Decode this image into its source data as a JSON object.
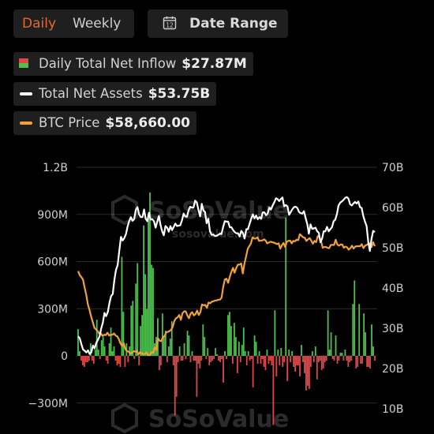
{
  "tabs": [
    {
      "label": "Daily",
      "active": true
    },
    {
      "label": "Weekly",
      "active": false
    }
  ],
  "date_range": {
    "label": "Date Range",
    "icon": "calendar-icon",
    "icon_text": "12"
  },
  "legend": [
    {
      "label": "Daily Total Net Inflow",
      "value": "$27.87M",
      "icon": "bar-swatch-icon",
      "colors": [
        "#e04848",
        "#4fc04f"
      ]
    },
    {
      "label": "Total Net Assets",
      "value": "$53.75B",
      "icon": "line-swatch-icon",
      "colors": [
        "#ffffff"
      ]
    },
    {
      "label": "BTC Price",
      "value": "$58,660.00",
      "icon": "line-swatch-icon",
      "colors": [
        "#f0a23a"
      ]
    }
  ],
  "watermark": {
    "brand": "SoSoValue",
    "site": "sosovalue.com"
  },
  "colors": {
    "positive": "#4fc04f",
    "negative": "#e04848",
    "assets": "#ffffff",
    "price": "#f0a23a",
    "active_tab": "#e8642c"
  },
  "chart_data": {
    "type": "bar",
    "y_left": {
      "ticks": [
        "1.2B",
        "900M",
        "600M",
        "300M",
        "0",
        "−300M"
      ],
      "min": -400000000,
      "max": 1200000000
    },
    "y_right": {
      "ticks": [
        "70B",
        "60B",
        "50B",
        "40B",
        "30B",
        "20B",
        "10B"
      ],
      "min": 8000000000,
      "max": 70000000000
    },
    "series": [
      {
        "name": "Daily Total Net Inflow",
        "kind": "bar",
        "unit": "USD",
        "values": [
          170,
          30,
          -30,
          -60,
          -70,
          -40,
          -40,
          -30,
          80,
          -30,
          -50,
          40,
          230,
          40,
          -20,
          100,
          120,
          60,
          -30,
          -50,
          80,
          180,
          30,
          60,
          -30,
          -60,
          -50,
          -70,
          630,
          280,
          -70,
          80,
          -40,
          60,
          320,
          350,
          -20,
          460,
          590,
          -60,
          190,
          260,
          830,
          520,
          300,
          890,
          1040,
          580,
          560,
          80,
          120,
          240,
          -90,
          -60,
          270,
          130,
          160,
          -40,
          60,
          110,
          220,
          -60,
          -380,
          -260,
          -40,
          60,
          -30,
          -30,
          80,
          -20,
          160,
          130,
          -40,
          30,
          -30,
          -30,
          -260,
          -50,
          -80,
          -30,
          200,
          120,
          -20,
          50,
          -60,
          -40,
          -30,
          -20,
          50,
          10,
          -30,
          -40,
          -20,
          -170,
          30,
          -20,
          260,
          280,
          190,
          -50,
          210,
          120,
          -110,
          90,
          -40,
          70,
          180,
          30,
          -60,
          30,
          -30,
          -20,
          -200,
          130,
          90,
          -50,
          30,
          -50,
          -20,
          -70,
          -90,
          40,
          -50,
          -30,
          -60,
          -440,
          290,
          -130,
          40,
          -60,
          50,
          -70,
          -40,
          880,
          -160,
          40,
          -40,
          30,
          -70,
          -100,
          -60,
          -60,
          -130,
          70,
          -40,
          -110,
          -220,
          -190,
          -210,
          -70,
          30,
          -40,
          60,
          -150,
          -40,
          -30,
          -90,
          -80,
          -40,
          -30,
          290,
          40,
          150,
          -20,
          -30,
          130,
          -50,
          -30,
          20,
          20,
          -30,
          40,
          -30,
          -70,
          -40,
          -30,
          330,
          480,
          -80,
          -70,
          330,
          -50,
          -50,
          270,
          150,
          -70,
          -70,
          -80,
          200,
          60,
          -30
        ]
      },
      {
        "name": "Total Net Assets",
        "kind": "line",
        "unit": "USD",
        "values": [
          28.0,
          27.5,
          26.0,
          24.7,
          24.4,
          24.0,
          24.5,
          23.6,
          24.0,
          25.7,
          25.0,
          26.4,
          27.1,
          28.0,
          29.9,
          31.4,
          33.8,
          33.0,
          34.0,
          36.3,
          38.0,
          38.5,
          42.1,
          44.5,
          45.7,
          49.3,
          52.7,
          51.8,
          52.4,
          53.4,
          55.3,
          56.7,
          57.6,
          56.7,
          57.1,
          59.4,
          60.1,
          58.3,
          57.6,
          57.6,
          59.5,
          57.2,
          56.6,
          58.7,
          57.0,
          57.1,
          56.6,
          55.0,
          56.5,
          57.9,
          55.7,
          54.1,
          53.1,
          55.4,
          55.0,
          54.0,
          55.4,
          54.4,
          55.2,
          56.0,
          55.4,
          55.5,
          55.6,
          56.8,
          58.5,
          57.8,
          57.7,
          59.3,
          60.2,
          60.0,
          60.0,
          61.7,
          61.3,
          59.4,
          57.8,
          60.9,
          59.3,
          58.9,
          56.1,
          57.2,
          54.1,
          53.2,
          53.3,
          52.9,
          53.0,
          53.2,
          53.5,
          53.4,
          55.2,
          56.6,
          56.5,
          56.5,
          55.1,
          55.1,
          54.4,
          53.9,
          53.6,
          53.6,
          52.8,
          54.2,
          53.6,
          52.3,
          54.6,
          54.6,
          55.9,
          57.2,
          58.3,
          57.3,
          58.0,
          57.1,
          57.6,
          57.2,
          58.8,
          58.8,
          58.1,
          58.5,
          60.0,
          59.5,
          60.5,
          61.3,
          62.3,
          62.1,
          61.6,
          62.1,
          62.5,
          60.3,
          60.6,
          60.3,
          58.2,
          58.9,
          59.6,
          60.1,
          60.2,
          59.9,
          58.9,
          58.6,
          58.5,
          59.1,
          57.4,
          55.9,
          53.5,
          55.8,
          54.7,
          54.8,
          55.0,
          54.1,
          53.7,
          51.4,
          52.3,
          54.1,
          54.1,
          55.2,
          54.1,
          54.6,
          55.1,
          56.6,
          57.0,
          58.4,
          60.5,
          61.2,
          61.5,
          61.9,
          62.4,
          62.6,
          62.2,
          60.8,
          60.5,
          61.0,
          61.4,
          61.0,
          61.5,
          60.1,
          59.9,
          57.9,
          56.5,
          55.4,
          51.6,
          49.2,
          52.2,
          54.2,
          53.9
        ]
      },
      {
        "name": "BTC Price",
        "kind": "line",
        "unit": "USD",
        "values": [
          44.2,
          43.2,
          42.7,
          42.1,
          40.1,
          38.3,
          35.9,
          34.5,
          32.9,
          31.5,
          30.1,
          29.7,
          29.3,
          28.6,
          28.7,
          28.1,
          28.4,
          28.3,
          28.9,
          28.2,
          28.4,
          28.4,
          28.7,
          28.2,
          28.0,
          27.3,
          26.2,
          25.6,
          26.3,
          24.8,
          24.3,
          24.2,
          23.7,
          23.9,
          24.3,
          24.2,
          24.4,
          23.5,
          24.1,
          23.7,
          23.6,
          23.6,
          24.0,
          23.3,
          23.4,
          24.1,
          23.9,
          25.2,
          24.6,
          27.5,
          26.9,
          26.8,
          27.8,
          28.0,
          29.0,
          29.1,
          29.3,
          29.6,
          30.3,
          31.8,
          32.5,
          32.7,
          33.3,
          32.1,
          33.7,
          34.2,
          34.2,
          33.2,
          32.5,
          33.6,
          34.0,
          33.2,
          33.5,
          34.4,
          33.3,
          34.0,
          35.9,
          35.7,
          35.8,
          35.1,
          36.4,
          36.2,
          36.6,
          36.7,
          36.9,
          36.9,
          37.1,
          37.1,
          37.6,
          40.3,
          42.1,
          42.3,
          41.3,
          42.7,
          44.0,
          45.0,
          43.8,
          45.0,
          45.8,
          45.8,
          46.1,
          43.6,
          46.0,
          47.8,
          49.7,
          50.4,
          51.1,
          52.6,
          52.3,
          52.3,
          52.6,
          51.7,
          51.8,
          51.8,
          52.1,
          51.8,
          51.1,
          51.3,
          51.5,
          51.4,
          51.3,
          51.1,
          50.9,
          51.1,
          49.8,
          50.6,
          51.2,
          50.2,
          51.5,
          51.7,
          51.8,
          51.1,
          51.7,
          51.6,
          52.0,
          51.9,
          53.4,
          53.0,
          52.6,
          52.5,
          51.7,
          52.1,
          52.4,
          51.8,
          51.0,
          51.7,
          51.4,
          52.9,
          52.6,
          51.7,
          50.0,
          50.2,
          50.2,
          50.0,
          49.9,
          50.7,
          50.7,
          50.7,
          52.0,
          50.8,
          50.5,
          50.8,
          50.8,
          50.0,
          50.3,
          50.1,
          49.5,
          49.9,
          50.5,
          49.8,
          50.3,
          50.4,
          50.4,
          50.4,
          50.9,
          49.9,
          50.5,
          50.7,
          51.0,
          51.1,
          50.2,
          51.4,
          50.4
        ]
      }
    ]
  }
}
